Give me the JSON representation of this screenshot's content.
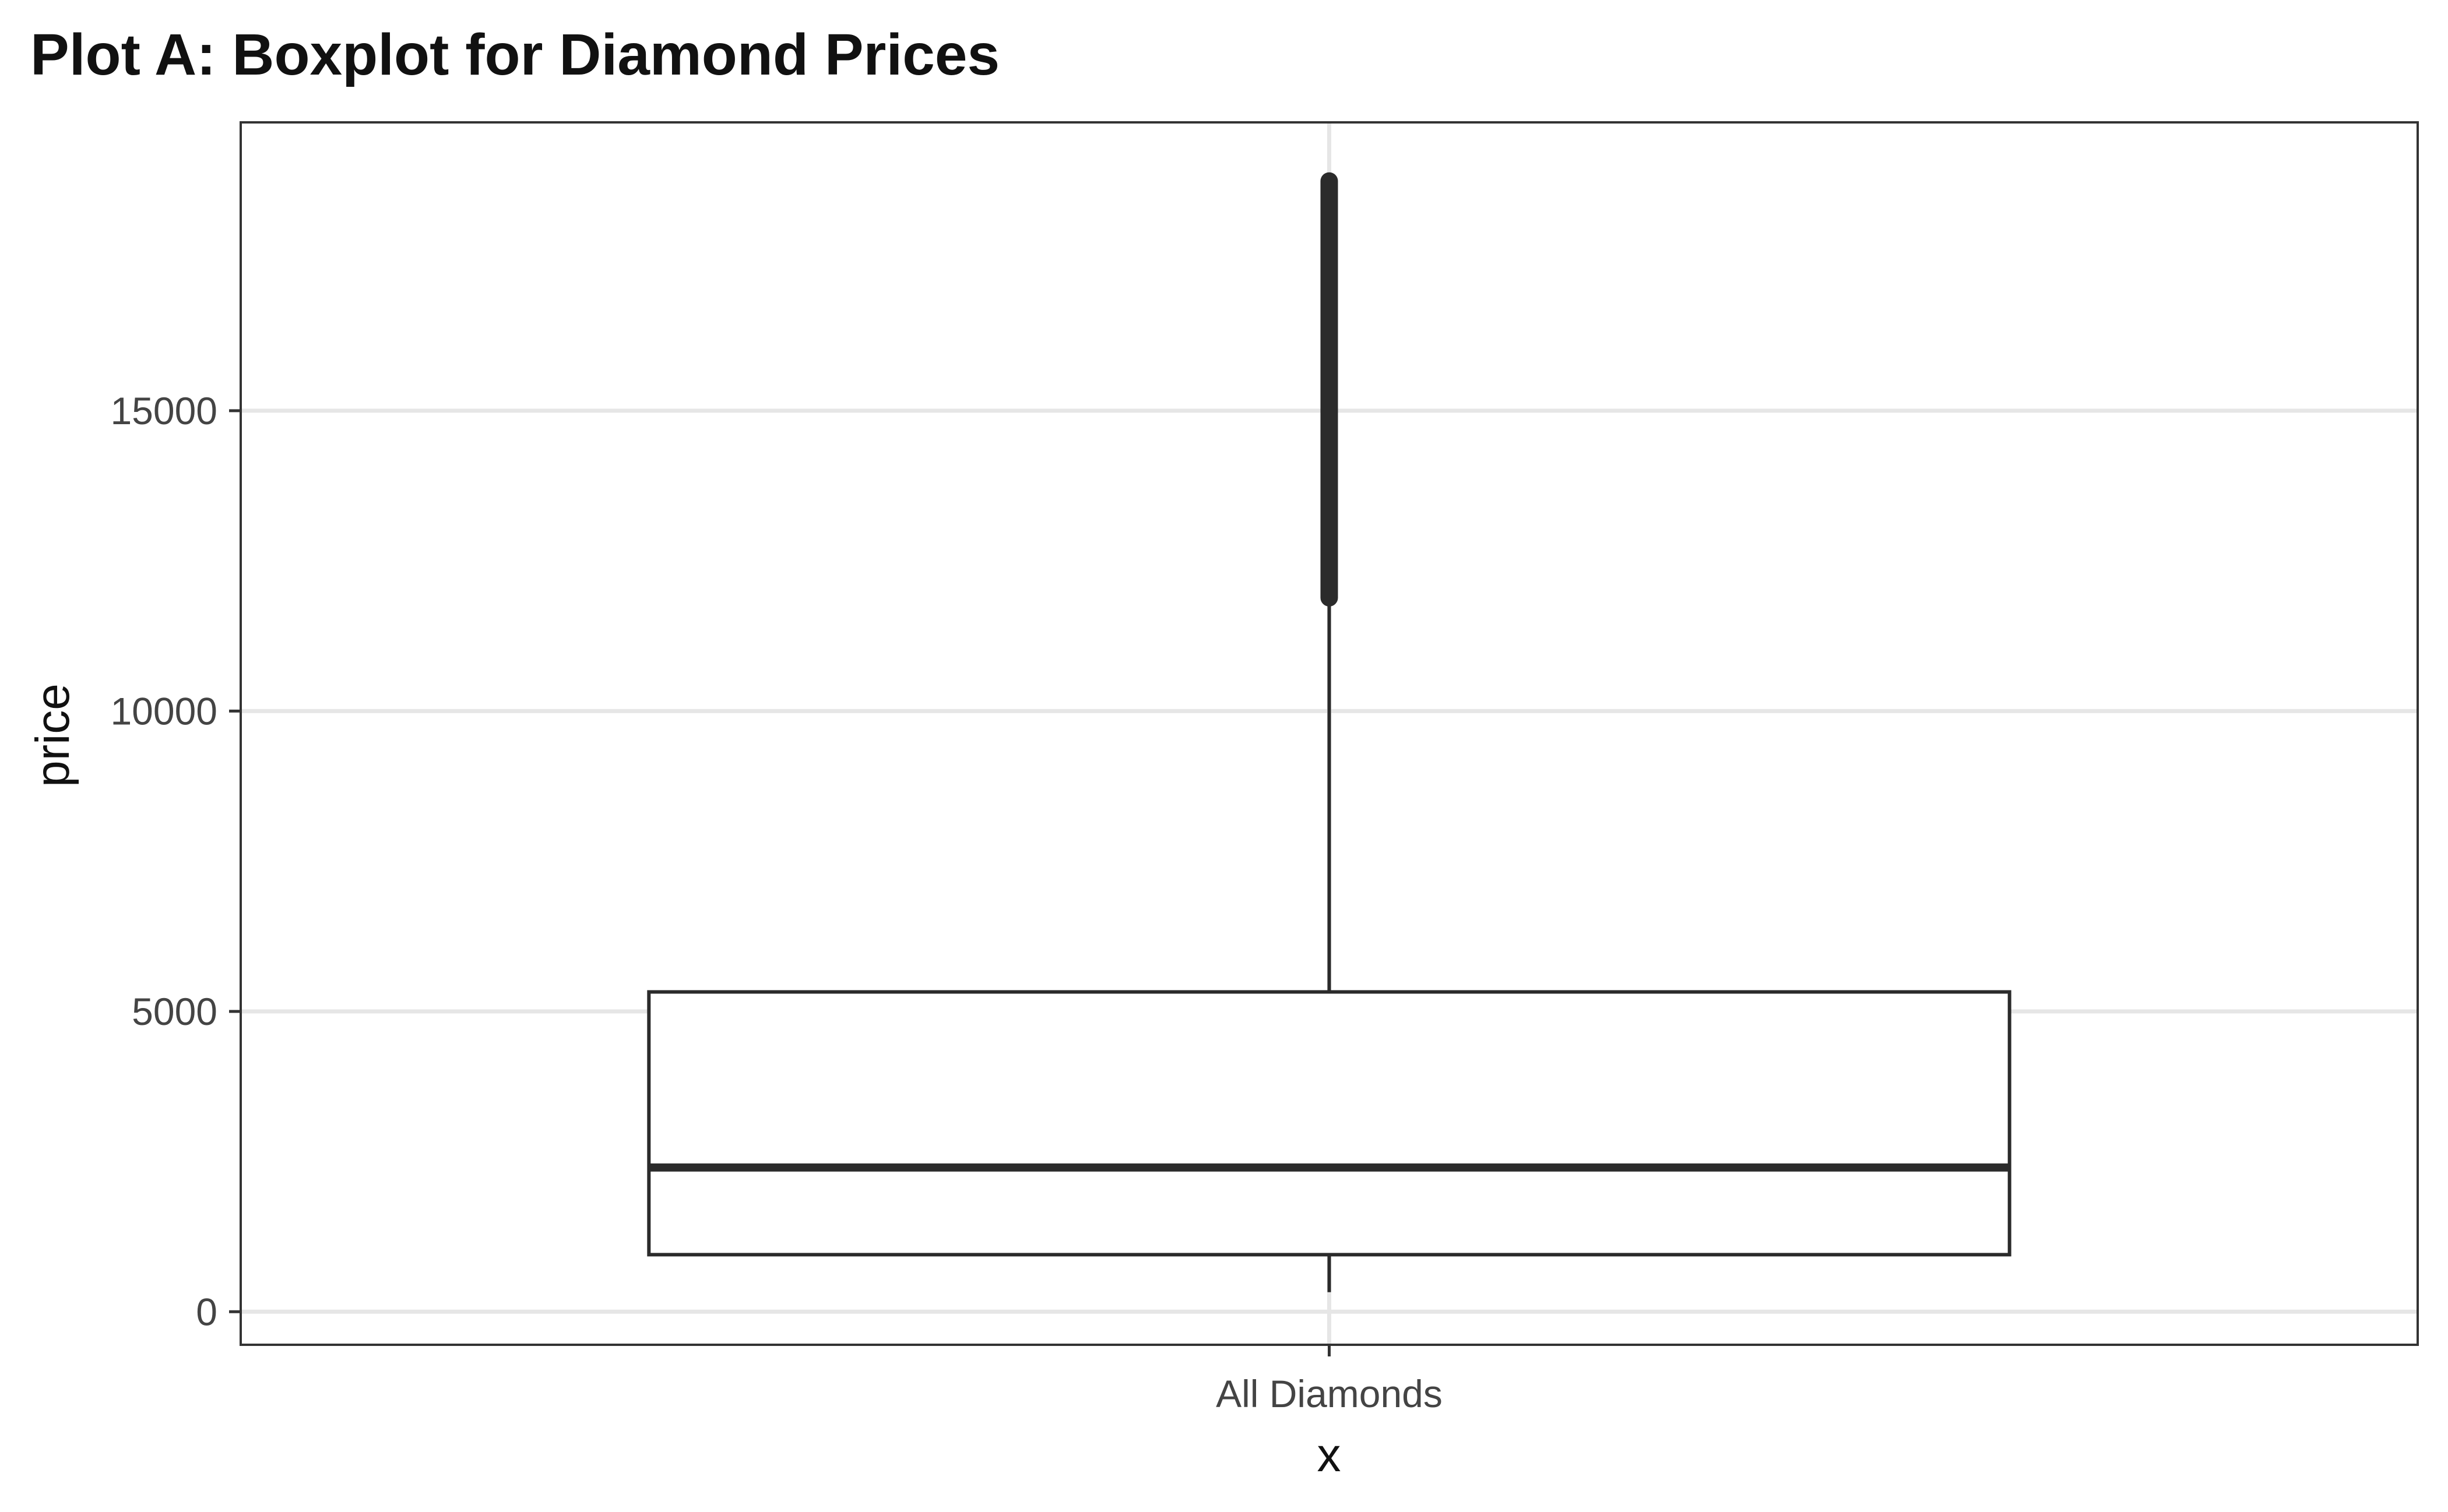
{
  "chart_data": {
    "type": "boxplot",
    "title": "Plot A: Boxplot for Diamond Prices",
    "xlabel": "x",
    "ylabel": "price",
    "categories": [
      "All Diamonds"
    ],
    "ylim": [
      -550,
      19800
    ],
    "y_ticks": [
      0,
      5000,
      10000,
      15000
    ],
    "y_tick_labels": [
      "0",
      "5000",
      "10000",
      "15000"
    ],
    "boxes": [
      {
        "category": "All Diamonds",
        "min": 326,
        "q1": 950,
        "median": 2401,
        "q3": 5324,
        "whisker_high": 11886,
        "outliers_range": [
          11886,
          18823
        ]
      }
    ],
    "grid": true,
    "legend": "none",
    "colors": {
      "box_stroke": "#2b2b2b",
      "grid": "#e6e6e6",
      "panel_border": "#333333"
    }
  }
}
